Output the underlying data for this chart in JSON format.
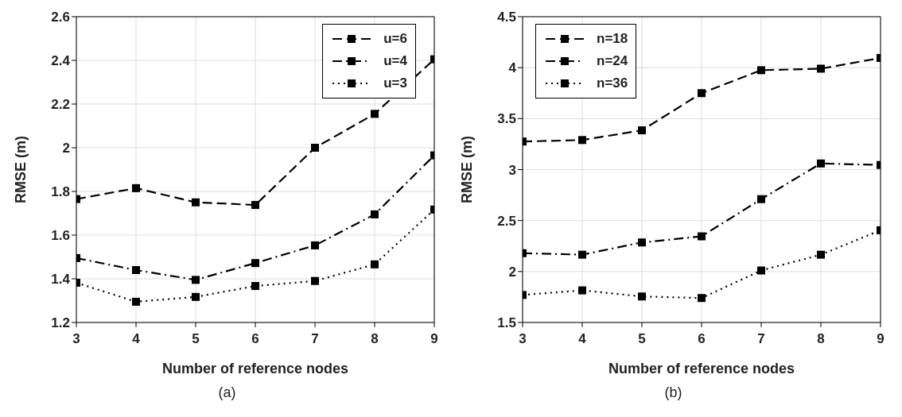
{
  "chart_data": [
    {
      "type": "line",
      "x": [
        3,
        4,
        5,
        6,
        7,
        8,
        9
      ],
      "xlabel": "Number of reference nodes",
      "ylabel": "RMSE (m)",
      "xlim": [
        3,
        9
      ],
      "xticks": [
        3,
        4,
        5,
        6,
        7,
        8,
        9
      ],
      "ylim": [
        1.2,
        2.6
      ],
      "yticks": [
        1.2,
        1.4,
        1.6,
        1.8,
        2,
        2.2,
        2.4,
        2.6
      ],
      "grid": true,
      "legend": "top right",
      "marker": "square",
      "annotations": [
        "(a)"
      ],
      "series": [
        {
          "name": "u=6",
          "color": "#000000",
          "line_style": "dashed",
          "values": [
            1.765,
            1.815,
            1.75,
            1.738,
            2.0,
            2.155,
            2.405
          ]
        },
        {
          "name": "u=4",
          "color": "#000000",
          "line_style": "dashdot",
          "values": [
            1.495,
            1.44,
            1.395,
            1.472,
            1.553,
            1.695,
            1.965
          ]
        },
        {
          "name": "u=3",
          "color": "#000000",
          "line_style": "dotted",
          "values": [
            1.382,
            1.295,
            1.317,
            1.367,
            1.39,
            1.466,
            1.717
          ]
        }
      ]
    },
    {
      "type": "line",
      "x": [
        3,
        4,
        5,
        6,
        7,
        8,
        9
      ],
      "xlabel": "Number of reference nodes",
      "ylabel": "RMSE (m)",
      "xlim": [
        3,
        9
      ],
      "xticks": [
        3,
        4,
        5,
        6,
        7,
        8,
        9
      ],
      "ylim": [
        1.5,
        4.5
      ],
      "yticks": [
        1.5,
        2,
        2.5,
        3,
        3.5,
        4,
        4.5
      ],
      "grid": true,
      "legend": "top left",
      "marker": "square",
      "annotations": [
        "(b)"
      ],
      "series": [
        {
          "name": "n=18",
          "color": "#000000",
          "line_style": "dashed",
          "values": [
            3.275,
            3.29,
            3.385,
            3.75,
            3.975,
            3.99,
            4.095
          ]
        },
        {
          "name": "n=24",
          "color": "#000000",
          "line_style": "dashdot",
          "values": [
            2.18,
            2.165,
            2.285,
            2.345,
            2.71,
            3.06,
            3.045
          ]
        },
        {
          "name": "n=36",
          "color": "#000000",
          "line_style": "dotted",
          "values": [
            1.77,
            1.815,
            1.755,
            1.74,
            2.01,
            2.165,
            2.405
          ]
        }
      ]
    }
  ]
}
